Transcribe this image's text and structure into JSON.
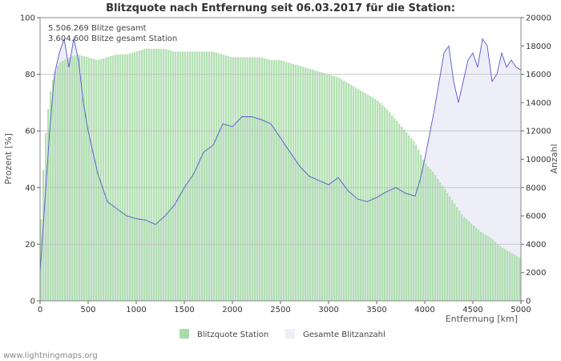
{
  "chart_data": {
    "type": "area",
    "title": "Blitzquote nach Entfernung seit 06.03.2017 für die Station:",
    "xlabel": "Entfernung   [km]",
    "ylabel_left": "Prozent   [%]",
    "ylabel_right": "Anzahl",
    "xlim": [
      0,
      5000
    ],
    "ylim_left": [
      0,
      100
    ],
    "ylim_right": [
      0,
      20000
    ],
    "x_ticks": [
      "0",
      "500",
      "1000",
      "1500",
      "2000",
      "2500",
      "3000",
      "3500",
      "4000",
      "4500",
      "5000"
    ],
    "y_ticks_left": [
      "0",
      "20",
      "40",
      "60",
      "80",
      "100"
    ],
    "y_ticks_right": [
      "0",
      "2000",
      "4000",
      "6000",
      "8000",
      "10000",
      "12000",
      "14000",
      "16000",
      "18000",
      "20000"
    ],
    "grid": true,
    "annotations": [
      "5.506.269 Blitze gesamt",
      "3.604.600 Blitze gesamt Station"
    ],
    "legend": [
      "Blitzquote Station",
      "Gesamte Blitzanzahl"
    ],
    "series": [
      {
        "name": "Blitzquote Station",
        "axis": "left",
        "style": "bars",
        "color": "#a8dca8",
        "x": [
          0,
          50,
          100,
          150,
          200,
          300,
          400,
          500,
          600,
          700,
          800,
          900,
          1000,
          1100,
          1200,
          1300,
          1400,
          1500,
          1600,
          1700,
          1800,
          1900,
          2000,
          2100,
          2200,
          2300,
          2400,
          2500,
          2600,
          2700,
          2800,
          2900,
          3000,
          3100,
          3200,
          3300,
          3400,
          3500,
          3600,
          3700,
          3800,
          3900,
          4000,
          4100,
          4200,
          4300,
          4400,
          4500,
          4600,
          4700,
          4800,
          4900,
          5000
        ],
        "values": [
          20,
          55,
          72,
          80,
          84,
          86,
          87,
          86,
          85,
          86,
          87,
          87,
          88,
          89,
          89,
          89,
          88,
          88,
          88,
          88,
          88,
          87,
          86,
          86,
          86,
          86,
          85,
          85,
          84,
          83,
          82,
          81,
          80,
          79,
          77,
          75,
          73,
          71,
          68,
          64,
          60,
          56,
          49,
          45,
          40,
          35,
          30,
          27,
          24,
          22,
          19,
          17,
          15
        ]
      },
      {
        "name": "Gesamte Blitzanzahl",
        "axis": "right",
        "style": "line-area",
        "color": "#5555cc",
        "fill": "#eeeef8",
        "x": [
          0,
          50,
          100,
          150,
          200,
          250,
          300,
          350,
          400,
          450,
          500,
          600,
          700,
          800,
          900,
          1000,
          1100,
          1200,
          1300,
          1400,
          1500,
          1600,
          1700,
          1800,
          1900,
          2000,
          2100,
          2200,
          2300,
          2400,
          2500,
          2600,
          2700,
          2800,
          2900,
          3000,
          3100,
          3200,
          3300,
          3400,
          3500,
          3600,
          3700,
          3800,
          3900,
          3950,
          4000,
          4100,
          4200,
          4250,
          4300,
          4350,
          4400,
          4450,
          4500,
          4550,
          4600,
          4650,
          4700,
          4750,
          4800,
          4850,
          4900,
          4950,
          5000
        ],
        "values": [
          2000,
          7000,
          12000,
          16000,
          17500,
          18500,
          16500,
          18500,
          17000,
          14000,
          12000,
          9000,
          7000,
          6500,
          6000,
          5800,
          5700,
          5400,
          6000,
          6800,
          8000,
          9000,
          10500,
          11000,
          12500,
          12300,
          13000,
          13000,
          12800,
          12500,
          11500,
          10500,
          9500,
          8800,
          8500,
          8200,
          8700,
          7800,
          7200,
          7000,
          7300,
          7700,
          8000,
          7600,
          7400,
          8500,
          10000,
          13500,
          17500,
          18000,
          15500,
          14000,
          15500,
          17000,
          17500,
          16500,
          18500,
          18000,
          15500,
          16000,
          17500,
          16500,
          17000,
          16500,
          16300
        ]
      }
    ]
  },
  "credit": "www.lightningmaps.org"
}
